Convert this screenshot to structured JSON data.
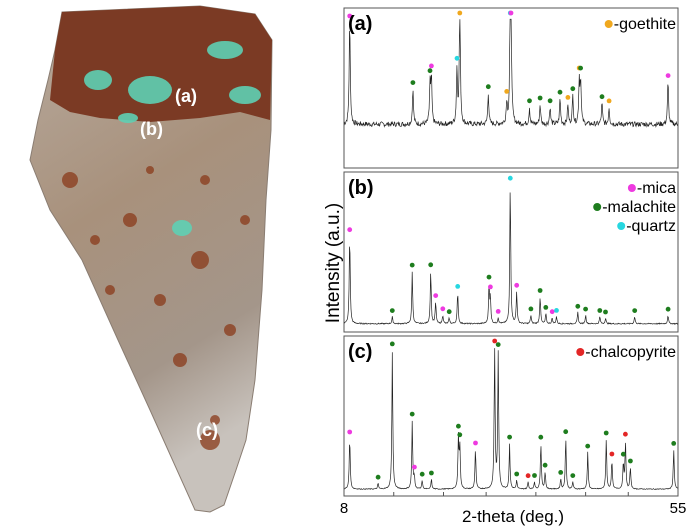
{
  "photo": {
    "labels": [
      "(a)",
      "(b)",
      "(c)"
    ]
  },
  "chart_data": {
    "type": "line",
    "ylabel": "Intensity (a.u.)",
    "xlabel": "2-theta (deg.)",
    "xlim": [
      8,
      55
    ],
    "x_ticks": [
      "8",
      "15",
      "22",
      "28",
      "35",
      "42",
      "48",
      "55"
    ],
    "x_tick_values": [
      8,
      15,
      22,
      28,
      35,
      42,
      48,
      55
    ],
    "grid": false,
    "legend_placement": "top-right",
    "phases": [
      {
        "key": "goethite",
        "label": "-goethite",
        "color": "#f0a81e"
      },
      {
        "key": "mica",
        "label": "-mica",
        "color": "#ee3ae0"
      },
      {
        "key": "malachite",
        "label": "-malachite",
        "color": "#1e7d1e"
      },
      {
        "key": "quartz",
        "label": "-quartz",
        "color": "#27d7e0"
      },
      {
        "key": "chalcopyrite",
        "label": "-chalcopyrite",
        "color": "#e32626"
      }
    ],
    "panels": [
      {
        "tag": "(a)",
        "legend": [
          "goethite"
        ],
        "baseline": 0.28,
        "noise": 0.035,
        "width": 0.09,
        "peaks": [
          [
            8.8,
            0.72,
            "mica"
          ],
          [
            17.7,
            0.25,
            "malachite"
          ],
          [
            20.1,
            0.28,
            "malachite"
          ],
          [
            20.3,
            0.32,
            "mica"
          ],
          [
            23.9,
            0.38,
            "quartz"
          ],
          [
            24.3,
            0.85,
            "goethite"
          ],
          [
            28.3,
            0.22,
            "malachite"
          ],
          [
            30.9,
            0.15,
            "goethite"
          ],
          [
            31.4,
            0.72,
            "quartz"
          ],
          [
            31.5,
            0.7,
            "mica"
          ],
          [
            34.1,
            0.12,
            "malachite"
          ],
          [
            35.6,
            0.14,
            "malachite"
          ],
          [
            37.0,
            0.12,
            "malachite"
          ],
          [
            38.4,
            0.18,
            "malachite"
          ],
          [
            39.5,
            0.14,
            "goethite"
          ],
          [
            40.2,
            0.2,
            "malachite"
          ],
          [
            41.1,
            0.3,
            "goethite"
          ],
          [
            41.3,
            0.3,
            "malachite"
          ],
          [
            44.3,
            0.15,
            "malachite"
          ],
          [
            45.3,
            0.12,
            "goethite"
          ],
          [
            53.6,
            0.3,
            "mica"
          ]
        ]
      },
      {
        "tag": "(b)",
        "legend": [
          "mica",
          "malachite",
          "quartz"
        ],
        "baseline": 0.03,
        "noise": 0.008,
        "width": 0.08,
        "peaks": [
          [
            8.8,
            0.62,
            "mica"
          ],
          [
            14.8,
            0.05,
            "malachite"
          ],
          [
            17.6,
            0.37,
            "malachite"
          ],
          [
            20.2,
            0.37,
            "malachite"
          ],
          [
            20.9,
            0.15,
            "mica"
          ],
          [
            21.9,
            0.06,
            "mica"
          ],
          [
            22.8,
            0.04,
            "malachite"
          ],
          [
            24.0,
            0.22,
            "quartz"
          ],
          [
            28.4,
            0.26,
            "malachite"
          ],
          [
            28.6,
            0.18,
            "mica"
          ],
          [
            29.7,
            0.04,
            "mica"
          ],
          [
            31.4,
            0.98,
            "quartz"
          ],
          [
            32.3,
            0.22,
            "mica"
          ],
          [
            34.3,
            0.06,
            "malachite"
          ],
          [
            35.6,
            0.19,
            "malachite"
          ],
          [
            36.4,
            0.07,
            "malachite"
          ],
          [
            37.3,
            0.04,
            "mica"
          ],
          [
            37.9,
            0.05,
            "quartz"
          ],
          [
            40.9,
            0.08,
            "malachite"
          ],
          [
            42.0,
            0.06,
            "malachite"
          ],
          [
            44.0,
            0.05,
            "malachite"
          ],
          [
            44.8,
            0.04,
            "malachite"
          ],
          [
            48.9,
            0.05,
            "malachite"
          ],
          [
            53.6,
            0.06,
            "malachite"
          ]
        ]
      },
      {
        "tag": "(c)",
        "legend": [
          "chalcopyrite"
        ],
        "baseline": 0.02,
        "noise": 0.006,
        "width": 0.08,
        "peaks": [
          [
            8.8,
            0.36,
            "mica"
          ],
          [
            12.8,
            0.04,
            "malachite"
          ],
          [
            14.8,
            0.98,
            "malachite"
          ],
          [
            17.6,
            0.48,
            "malachite"
          ],
          [
            17.9,
            0.08,
            "mica"
          ],
          [
            19.0,
            0.06,
            "malachite"
          ],
          [
            20.3,
            0.07,
            "malachite"
          ],
          [
            24.1,
            0.36,
            "malachite"
          ],
          [
            24.3,
            0.29,
            "malachite"
          ],
          [
            26.5,
            0.28,
            "mica"
          ],
          [
            29.2,
            0.98,
            "chalcopyrite"
          ],
          [
            29.7,
            0.95,
            "malachite"
          ],
          [
            31.3,
            0.32,
            "malachite"
          ],
          [
            32.3,
            0.06,
            "malachite"
          ],
          [
            33.9,
            0.05,
            "chalcopyrite"
          ],
          [
            34.8,
            0.05,
            "malachite"
          ],
          [
            35.7,
            0.32,
            "malachite"
          ],
          [
            36.3,
            0.12,
            "malachite"
          ],
          [
            38.5,
            0.07,
            "malachite"
          ],
          [
            39.2,
            0.36,
            "malachite"
          ],
          [
            40.2,
            0.05,
            "malachite"
          ],
          [
            42.3,
            0.26,
            "malachite"
          ],
          [
            44.9,
            0.35,
            "malachite"
          ],
          [
            45.7,
            0.2,
            "chalcopyrite"
          ],
          [
            47.3,
            0.18,
            "malachite"
          ],
          [
            47.6,
            0.33,
            "chalcopyrite"
          ],
          [
            48.3,
            0.15,
            "malachite"
          ],
          [
            54.4,
            0.28,
            "malachite"
          ]
        ]
      }
    ]
  }
}
